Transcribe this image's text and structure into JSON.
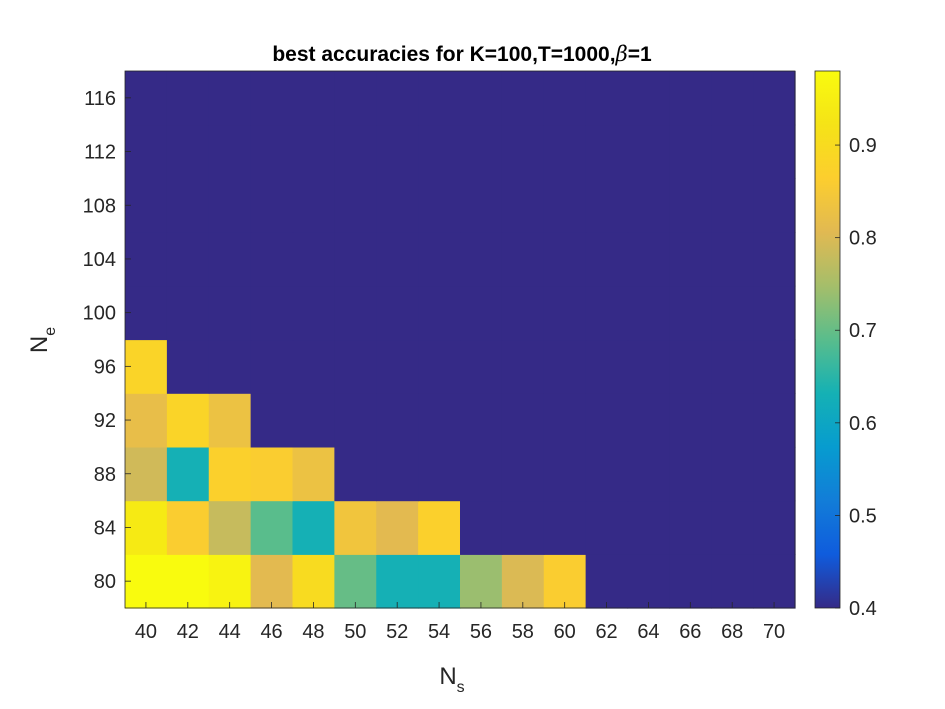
{
  "chart_data": {
    "type": "heatmap",
    "title": "best accuracies for K=100,T=1000,",
    "title_beta_symbol": "β",
    "title_suffix": "=1",
    "xlabel": "N",
    "xlabel_sub": "s",
    "ylabel": "N",
    "ylabel_sub": "e",
    "x": [
      40,
      42,
      44,
      46,
      48,
      50,
      52,
      54,
      56,
      58,
      60,
      62,
      64,
      66,
      68,
      70
    ],
    "y": [
      80,
      84,
      88,
      92,
      96,
      100,
      104,
      108,
      112,
      116
    ],
    "xticks": [
      "40",
      "42",
      "44",
      "46",
      "48",
      "50",
      "52",
      "54",
      "56",
      "58",
      "60",
      "62",
      "64",
      "66",
      "68",
      "70"
    ],
    "yticks": [
      "80",
      "84",
      "88",
      "92",
      "96",
      "100",
      "104",
      "108",
      "112",
      "116"
    ],
    "z": [
      [
        0.98,
        0.98,
        0.96,
        0.81,
        0.9,
        0.7,
        0.63,
        0.63,
        0.74,
        0.8,
        0.86,
        0.4,
        0.4,
        0.4,
        0.4,
        0.4
      ],
      [
        0.94,
        0.86,
        0.78,
        0.69,
        0.63,
        0.84,
        0.81,
        0.87,
        0.4,
        0.4,
        0.4,
        0.4,
        0.4,
        0.4,
        0.4,
        0.4
      ],
      [
        0.79,
        0.63,
        0.87,
        0.86,
        0.83,
        0.4,
        0.4,
        0.4,
        0.4,
        0.4,
        0.4,
        0.4,
        0.4,
        0.4,
        0.4,
        0.4
      ],
      [
        0.82,
        0.88,
        0.83,
        0.4,
        0.4,
        0.4,
        0.4,
        0.4,
        0.4,
        0.4,
        0.4,
        0.4,
        0.4,
        0.4,
        0.4,
        0.4
      ],
      [
        0.88,
        0.4,
        0.4,
        0.4,
        0.4,
        0.4,
        0.4,
        0.4,
        0.4,
        0.4,
        0.4,
        0.4,
        0.4,
        0.4,
        0.4,
        0.4
      ],
      [
        0.4,
        0.4,
        0.4,
        0.4,
        0.4,
        0.4,
        0.4,
        0.4,
        0.4,
        0.4,
        0.4,
        0.4,
        0.4,
        0.4,
        0.4,
        0.4
      ],
      [
        0.4,
        0.4,
        0.4,
        0.4,
        0.4,
        0.4,
        0.4,
        0.4,
        0.4,
        0.4,
        0.4,
        0.4,
        0.4,
        0.4,
        0.4,
        0.4
      ],
      [
        0.4,
        0.4,
        0.4,
        0.4,
        0.4,
        0.4,
        0.4,
        0.4,
        0.4,
        0.4,
        0.4,
        0.4,
        0.4,
        0.4,
        0.4,
        0.4
      ],
      [
        0.4,
        0.4,
        0.4,
        0.4,
        0.4,
        0.4,
        0.4,
        0.4,
        0.4,
        0.4,
        0.4,
        0.4,
        0.4,
        0.4,
        0.4,
        0.4
      ],
      [
        0.4,
        0.4,
        0.4,
        0.4,
        0.4,
        0.4,
        0.4,
        0.4,
        0.4,
        0.4,
        0.4,
        0.4,
        0.4,
        0.4,
        0.4,
        0.4
      ]
    ],
    "colorbar": {
      "range": [
        0.4,
        0.98
      ],
      "ticks": [
        0.4,
        0.5,
        0.6,
        0.7,
        0.8,
        0.9
      ],
      "tick_labels": [
        "0.4",
        "0.5",
        "0.6",
        "0.7",
        "0.8",
        "0.9"
      ],
      "colormap": "parula"
    },
    "grid": false
  }
}
